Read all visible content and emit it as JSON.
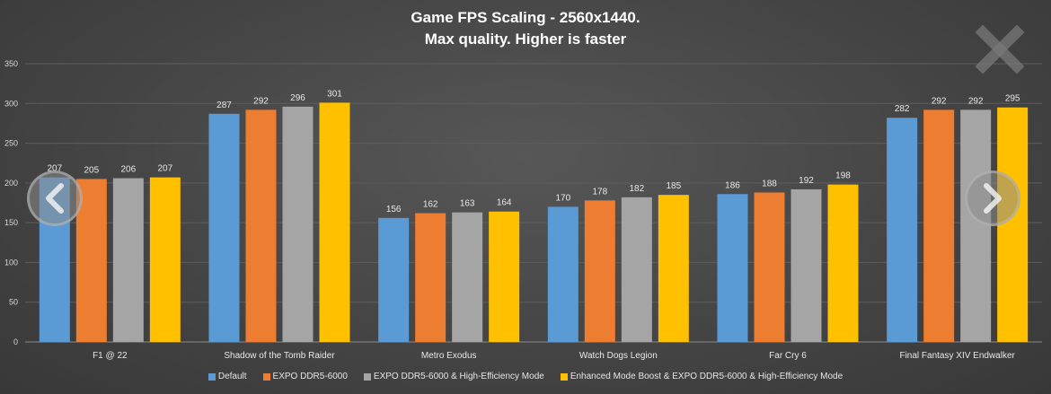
{
  "title_line1": "Game FPS Scaling - 2560x1440.",
  "title_line2": "Max quality. Higher is faster",
  "nav": {
    "prev_icon": "chevron-left-icon",
    "next_icon": "chevron-right-icon",
    "close_icon": "close-icon"
  },
  "chart_data": {
    "type": "bar",
    "title": "Game FPS Scaling - 2560x1440. Max quality. Higher is faster",
    "xlabel": "",
    "ylabel": "",
    "ylim": [
      0,
      350
    ],
    "yticks": [
      0,
      50,
      100,
      150,
      200,
      250,
      300,
      350
    ],
    "grid": true,
    "legend_position": "bottom",
    "categories": [
      "F1 @ 22",
      "Shadow of the Tomb Raider",
      "Metro Exodus",
      "Watch Dogs Legion",
      "Far Cry 6",
      "Final Fantasy XIV Endwalker"
    ],
    "series": [
      {
        "name": "Default",
        "color": "#5B9BD5",
        "values": [
          207,
          287,
          156,
          170,
          186,
          282
        ]
      },
      {
        "name": "EXPO DDR5-6000",
        "color": "#ED7D31",
        "values": [
          205,
          292,
          162,
          178,
          188,
          292
        ]
      },
      {
        "name": "EXPO DDR5-6000 & High-Efficiency Mode",
        "color": "#A5A5A5",
        "values": [
          206,
          296,
          163,
          182,
          192,
          292
        ]
      },
      {
        "name": "Enhanced Mode Boost & EXPO DDR5-6000 & High-Efficiency Mode",
        "color": "#FFC000",
        "values": [
          207,
          301,
          164,
          185,
          198,
          295
        ]
      }
    ]
  }
}
